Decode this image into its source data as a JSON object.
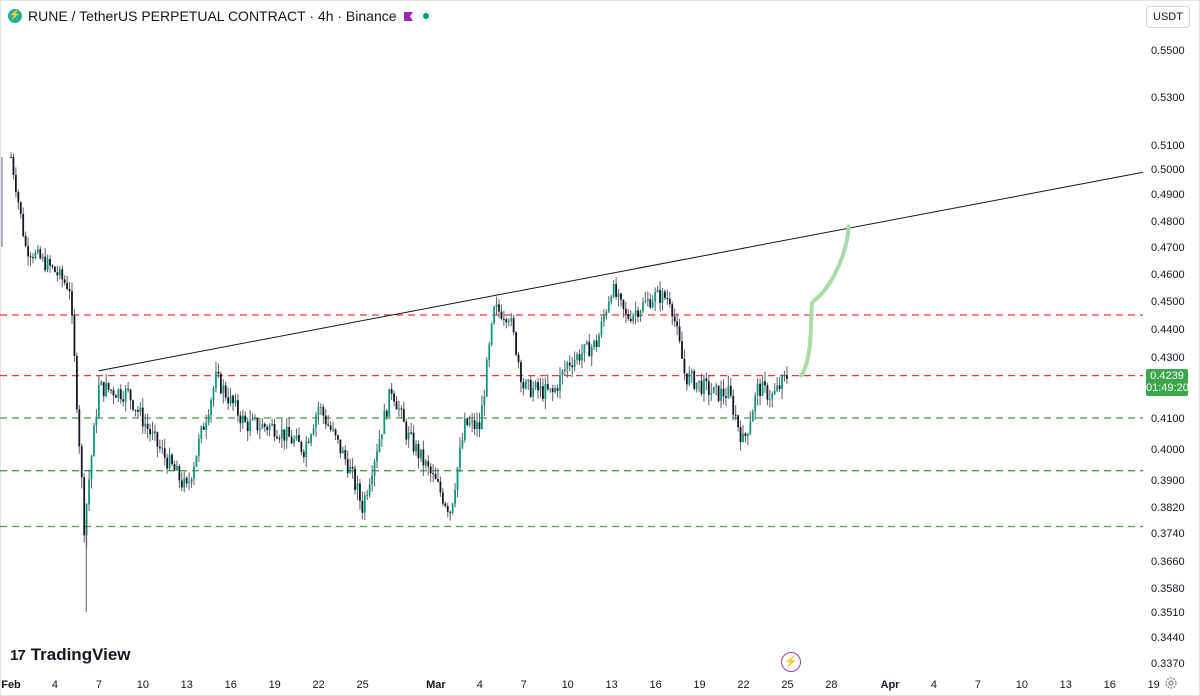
{
  "header": {
    "title": "RUNE / TetherUS PERPETUAL CONTRACT · 4h · Binance",
    "symbol_icon": "lightning-coin-icon",
    "currency_button": "USDT"
  },
  "branding": {
    "logo_text": "TradingView",
    "logo_mark": "17"
  },
  "last_price": {
    "price": "0.4239",
    "countdown": "01:49:20",
    "color": "#3aa64a"
  },
  "chart_data": {
    "type": "candlestick",
    "timeframe": "4h",
    "y_axis_ticks": [
      "0.5500",
      "0.5300",
      "0.5100",
      "0.5000",
      "0.4900",
      "0.4800",
      "0.4700",
      "0.4600",
      "0.4500",
      "0.4400",
      "0.4300",
      "0.4100",
      "0.4000",
      "0.3900",
      "0.3820",
      "0.3740",
      "0.3660",
      "0.3580",
      "0.3510",
      "0.3440",
      "0.3370"
    ],
    "x_axis_ticks": [
      "Feb",
      "4",
      "7",
      "10",
      "13",
      "16",
      "19",
      "22",
      "25",
      "Mar",
      "4",
      "7",
      "10",
      "13",
      "16",
      "19",
      "22",
      "25",
      "28",
      "Apr",
      "4",
      "7",
      "10",
      "13",
      "16",
      "19"
    ],
    "price_path": [
      [
        "Feb 1",
        0.505
      ],
      [
        "Feb 2",
        0.47
      ],
      [
        "Feb 4",
        0.461
      ],
      [
        "Feb 5",
        0.455
      ],
      [
        "Feb 6",
        0.376
      ],
      [
        "Feb 7",
        0.42
      ],
      [
        "Feb 9",
        0.418
      ],
      [
        "Feb 11",
        0.401
      ],
      [
        "Feb 13",
        0.387
      ],
      [
        "Feb 15",
        0.423
      ],
      [
        "Feb 17",
        0.408
      ],
      [
        "Feb 19",
        0.407
      ],
      [
        "Feb 21",
        0.4
      ],
      [
        "Feb 22",
        0.414
      ],
      [
        "Feb 24",
        0.395
      ],
      [
        "Feb 25",
        0.382
      ],
      [
        "Feb 27",
        0.42
      ],
      [
        "Feb 28",
        0.405
      ],
      [
        "Mar 2",
        0.381
      ],
      [
        "Mar 3",
        0.408
      ],
      [
        "Mar 4",
        0.407
      ],
      [
        "Mar 5",
        0.447
      ],
      [
        "Mar 6",
        0.445
      ],
      [
        "Mar 7",
        0.42
      ],
      [
        "Mar 9",
        0.418
      ],
      [
        "Mar 10",
        0.428
      ],
      [
        "Mar 12",
        0.435
      ],
      [
        "Mar 13",
        0.455
      ],
      [
        "Mar 14",
        0.444
      ],
      [
        "Mar 16",
        0.452
      ],
      [
        "Mar 17",
        0.451
      ],
      [
        "Mar 18",
        0.424
      ],
      [
        "Mar 20",
        0.418
      ],
      [
        "Mar 21",
        0.418
      ],
      [
        "Mar 22",
        0.402
      ],
      [
        "Mar 23",
        0.42
      ],
      [
        "Mar 24",
        0.417
      ],
      [
        "Mar 25",
        0.4239
      ]
    ],
    "wick_low": 0.351,
    "wick_high": 0.505,
    "horizontal_levels": [
      {
        "price": 0.445,
        "color": "#e53935",
        "style": "dashed"
      },
      {
        "price": 0.4239,
        "color": "#e53935",
        "style": "dashed"
      },
      {
        "price": 0.41,
        "color": "#43a047",
        "style": "dashed"
      },
      {
        "price": 0.393,
        "color": "#43a047",
        "style": "dashed"
      },
      {
        "price": 0.376,
        "color": "#43a047",
        "style": "dashed"
      }
    ],
    "trendline": {
      "from": [
        "Feb 7",
        0.4255
      ],
      "to": [
        "Apr 19",
        0.4987
      ],
      "color": "#131722"
    },
    "projection": {
      "color": "#a8dca8",
      "points": [
        [
          "Mar 25",
          0.4239
        ],
        [
          "Mar 26",
          0.448
        ],
        [
          "Mar 27",
          0.471
        ]
      ]
    },
    "colors": {
      "up": "#089981",
      "down": "#131722",
      "wick": "#5d606b"
    }
  }
}
